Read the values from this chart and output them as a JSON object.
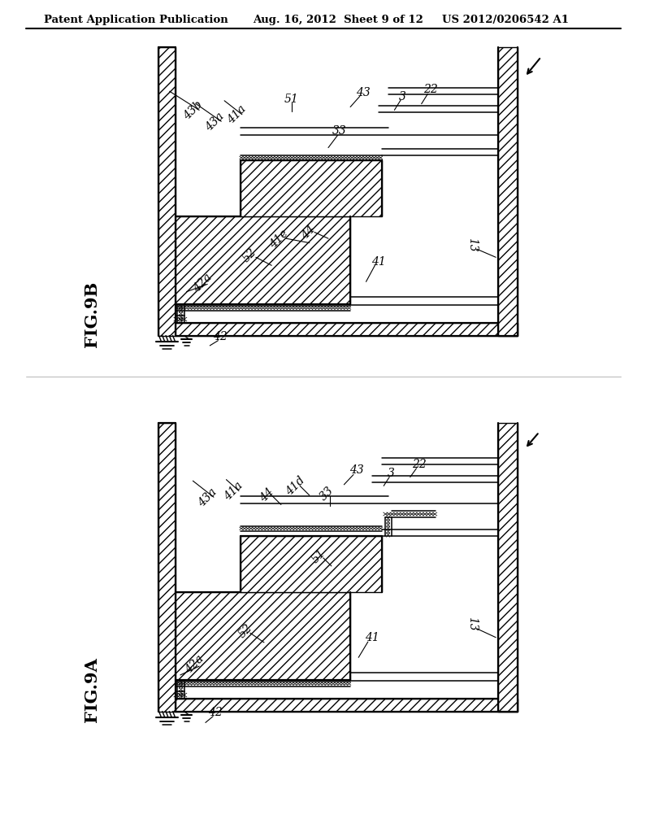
{
  "background_color": "#ffffff",
  "header_left": "Patent Application Publication",
  "header_center": "Aug. 16, 2012  Sheet 9 of 12",
  "header_right": "US 2012/0206542 A1",
  "fig9b_label": "FIG.9B",
  "fig9a_label": "FIG.9A"
}
